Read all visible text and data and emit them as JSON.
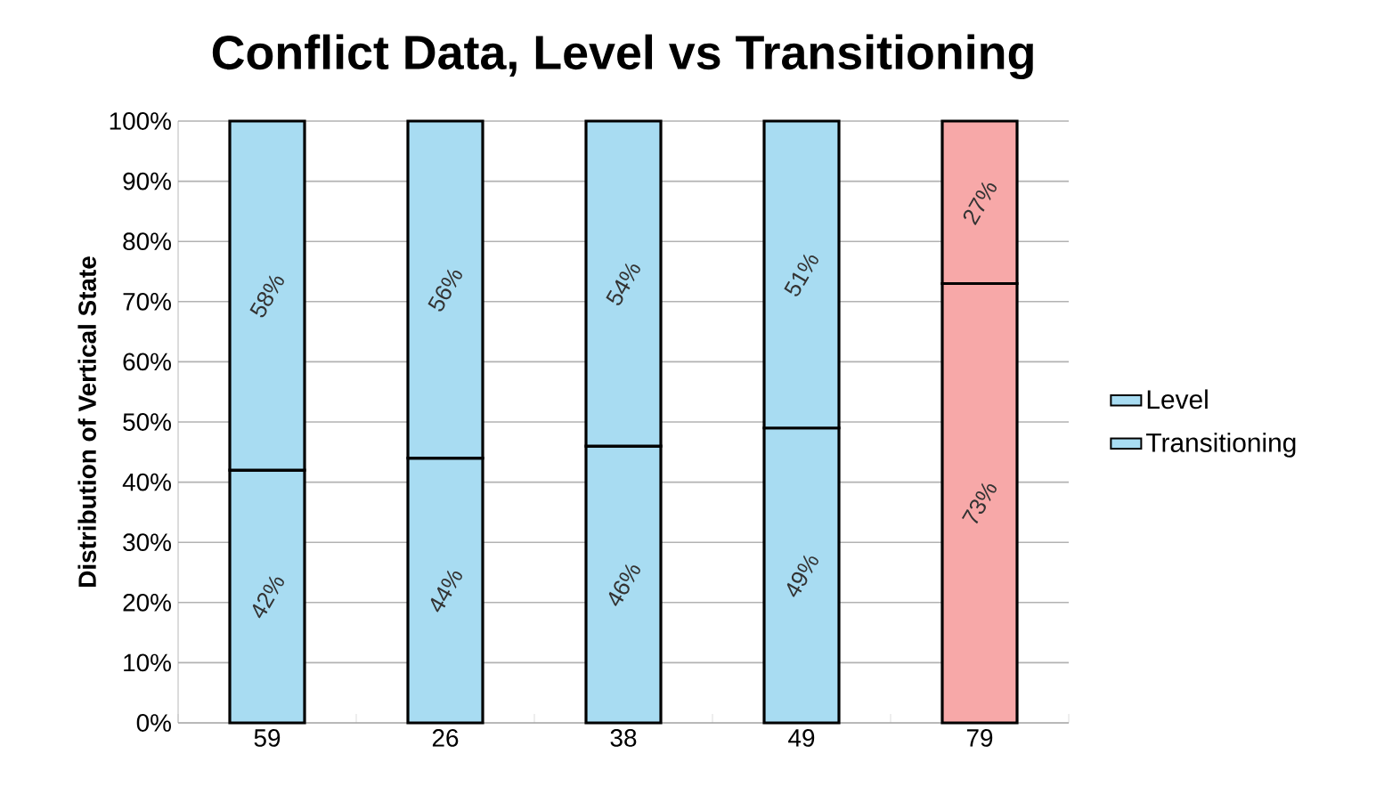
{
  "chart_data": {
    "type": "bar",
    "title": "Conflict Data, Level vs Transitioning",
    "ylabel": "Distribution of Vertical State",
    "categories": [
      "59",
      "26",
      "38",
      "49",
      "79"
    ],
    "stacked": true,
    "series": [
      {
        "name": "Transitioning",
        "colors": [
          "#a8dcf2",
          "#a8dcf2",
          "#a8dcf2",
          "#a8dcf2",
          "#f7a8a8"
        ],
        "values": [
          42,
          44,
          46,
          49,
          73
        ],
        "value_labels": [
          "42%",
          "44%",
          "46%",
          "49%",
          "73%"
        ]
      },
      {
        "name": "Level",
        "colors": [
          "#a8dcf2",
          "#a8dcf2",
          "#a8dcf2",
          "#a8dcf2",
          "#f7a8a8"
        ],
        "values": [
          58,
          56,
          54,
          51,
          27
        ],
        "value_labels": [
          "58%",
          "56%",
          "54%",
          "51%",
          "27%"
        ]
      }
    ],
    "ylim": [
      0,
      100
    ],
    "yticks": [
      {
        "value": 0,
        "label": "0%"
      },
      {
        "value": 10,
        "label": "10%"
      },
      {
        "value": 20,
        "label": "20%"
      },
      {
        "value": 30,
        "label": "30%"
      },
      {
        "value": 40,
        "label": "40%"
      },
      {
        "value": 50,
        "label": "50%"
      },
      {
        "value": 60,
        "label": "60%"
      },
      {
        "value": 70,
        "label": "70%"
      },
      {
        "value": 80,
        "label": "80%"
      },
      {
        "value": 90,
        "label": "90%"
      },
      {
        "value": 100,
        "label": "100%"
      }
    ],
    "grid": "y",
    "legend": "right"
  }
}
